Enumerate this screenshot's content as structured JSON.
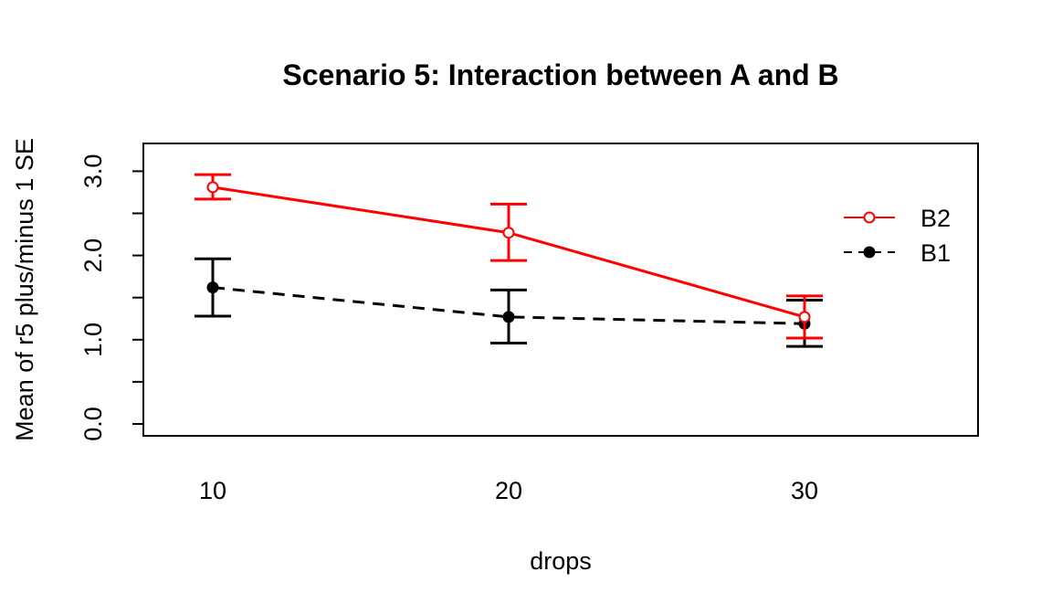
{
  "chart_data": {
    "type": "line",
    "title": "Scenario 5: Interaction between A and B",
    "xlabel": "drops",
    "ylabel": "Mean of  r5 plus/minus 1 SE",
    "categories": [
      "10",
      "20",
      "30"
    ],
    "ylim": [
      -0.15,
      3.35
    ],
    "yticks": [
      0.0,
      0.5,
      1.0,
      1.5,
      2.0,
      2.5,
      3.0
    ],
    "ytick_labels": [
      "0.0",
      "",
      "1.0",
      "",
      "2.0",
      "",
      "3.0"
    ],
    "grid": false,
    "legend_position": "top-right",
    "series": [
      {
        "name": "B2",
        "color": "#ff0000",
        "marker": "open-circle",
        "line_style": "solid",
        "means": [
          2.81,
          2.27,
          1.27
        ],
        "lower": [
          2.67,
          1.94,
          1.02
        ],
        "upper": [
          2.96,
          2.61,
          1.52
        ]
      },
      {
        "name": "B1",
        "color": "#000000",
        "marker": "filled-circle",
        "line_style": "dashed",
        "means": [
          1.62,
          1.27,
          1.19
        ],
        "lower": [
          1.28,
          0.96,
          0.92
        ],
        "upper": [
          1.96,
          1.59,
          1.47
        ]
      }
    ]
  }
}
